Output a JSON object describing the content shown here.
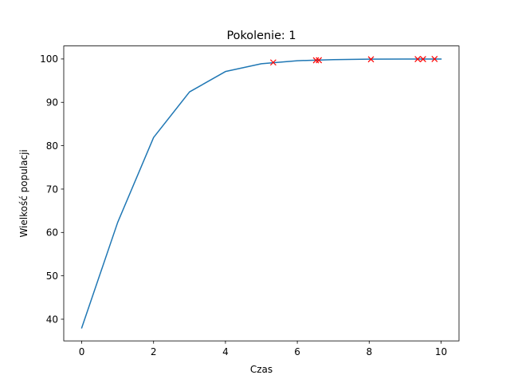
{
  "chart_data": {
    "type": "line",
    "title": "Pokolenie: 1",
    "xlabel": "Czas",
    "ylabel": "Wielkość populacji",
    "xlim": [
      -0.5,
      10.5
    ],
    "ylim": [
      35,
      103
    ],
    "xticks": [
      0,
      2,
      4,
      6,
      8,
      10
    ],
    "yticks": [
      40,
      50,
      60,
      70,
      80,
      90,
      100
    ],
    "grid": false,
    "series": [
      {
        "kind": "line",
        "color": "#1f77b4",
        "x": [
          0,
          1,
          2,
          3,
          4,
          5,
          6,
          7,
          8,
          9,
          10
        ],
        "y": [
          38,
          62.3,
          81.9,
          92.4,
          97.1,
          98.9,
          99.6,
          99.85,
          99.95,
          99.98,
          99.99
        ]
      },
      {
        "kind": "scatter",
        "marker": "x",
        "color": "#ff0000",
        "x": [
          5.33,
          6.52,
          6.6,
          8.05,
          9.35,
          9.5,
          9.82
        ],
        "y": [
          99.2,
          99.7,
          99.72,
          99.92,
          99.97,
          99.98,
          99.99
        ]
      }
    ]
  }
}
